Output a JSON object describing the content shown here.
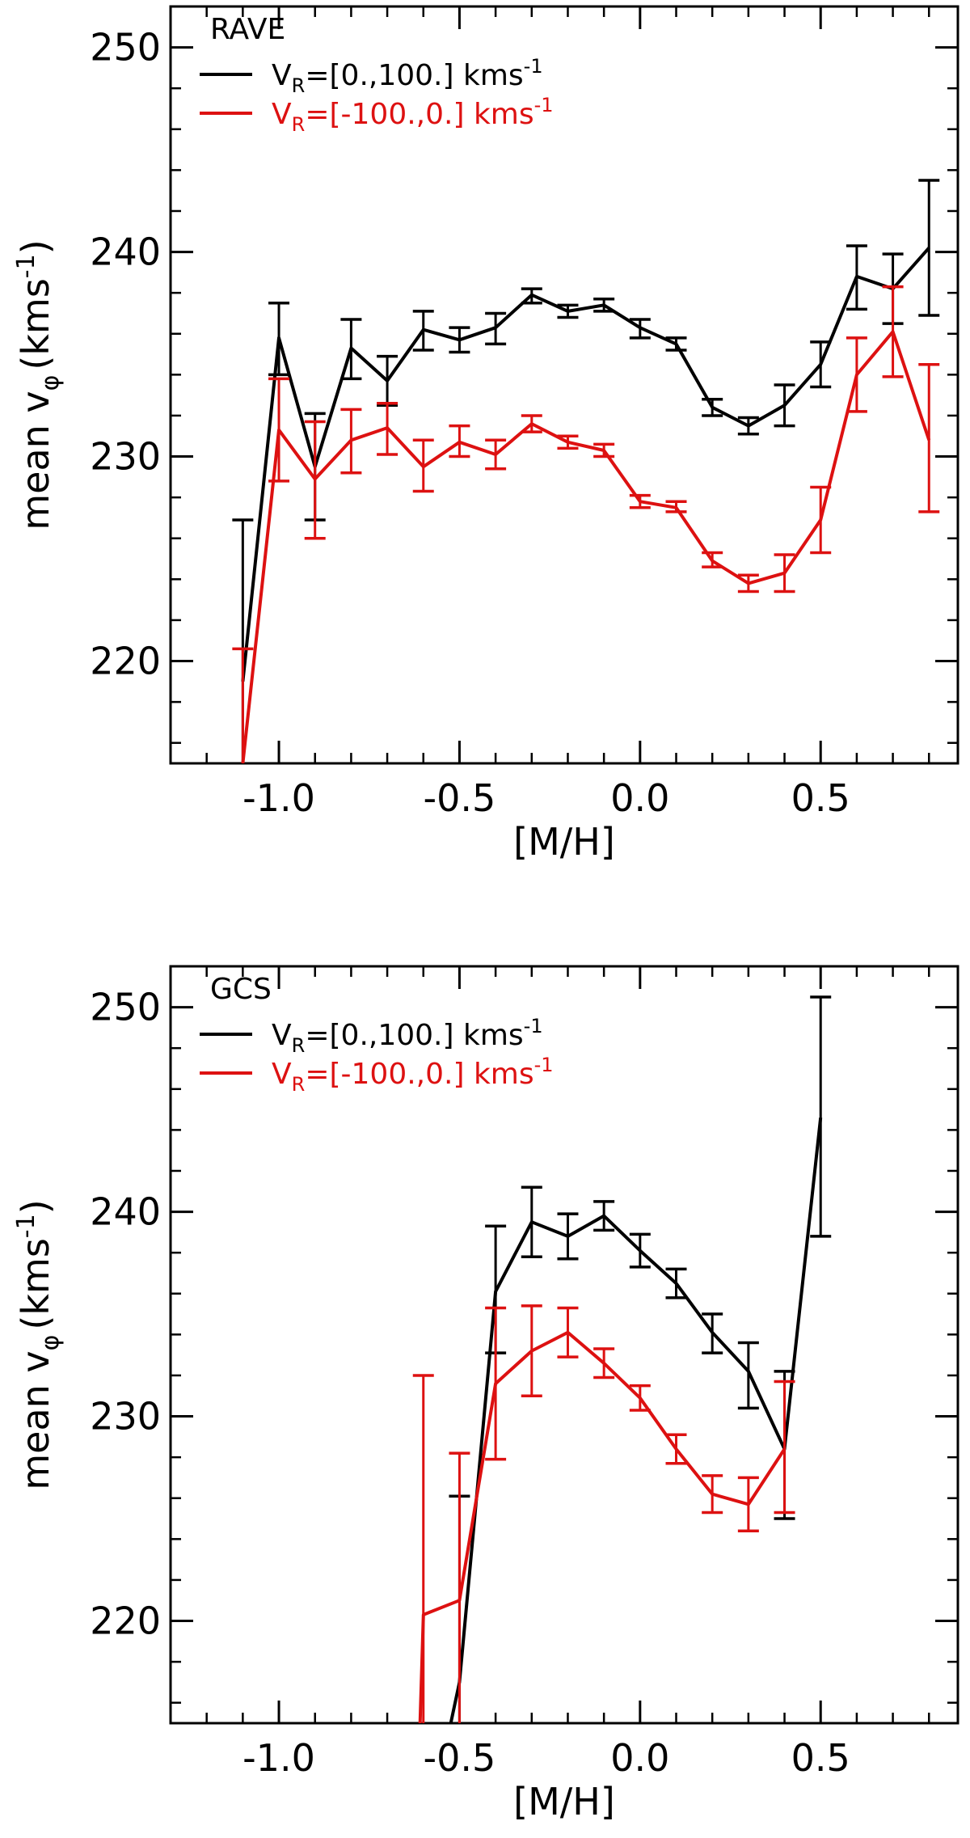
{
  "chart_data": [
    {
      "type": "line",
      "panel_label": "RAVE",
      "xlabel": "[M/H]",
      "ylabel_main": "mean v",
      "ylabel_sub": "φ",
      "ylabel_unit": "(kms",
      "ylabel_exp": "-1",
      "ylabel_close": ")",
      "xlim": [
        -1.3,
        0.88
      ],
      "ylim": [
        215,
        252
      ],
      "xticks": [
        -1.0,
        -0.5,
        0.0,
        0.5
      ],
      "xtick_labels": [
        "-1.0",
        "-0.5",
        "0.0",
        "0.5"
      ],
      "yticks": [
        220,
        230,
        240,
        250
      ],
      "ytick_labels": [
        "220",
        "230",
        "240",
        "250"
      ],
      "legend": {
        "position": "top-left",
        "entries": [
          {
            "color": "#000000",
            "prefix": "V",
            "sub": "R",
            "text": "=[0.,100.] kms",
            "sup": "-1"
          },
          {
            "color": "#dd1111",
            "prefix": "V",
            "sub": "R",
            "text": "=[-100.,0.] kms",
            "sup": "-1"
          }
        ]
      },
      "series": [
        {
          "name": "V_R=[0.,100.] kms^-1",
          "color": "#000000",
          "x": [
            -1.1,
            -1.0,
            -0.9,
            -0.8,
            -0.7,
            -0.6,
            -0.5,
            -0.4,
            -0.3,
            -0.2,
            -0.1,
            0.0,
            0.1,
            0.2,
            0.3,
            0.4,
            0.5,
            0.6,
            0.7,
            0.8
          ],
          "y": [
            219.0,
            235.8,
            229.5,
            235.3,
            233.7,
            236.2,
            235.7,
            236.3,
            237.9,
            237.1,
            237.4,
            236.3,
            235.5,
            232.4,
            231.5,
            232.5,
            234.5,
            238.8,
            238.2,
            240.2
          ],
          "err_lo": [
            214.5,
            234.0,
            226.9,
            233.8,
            232.5,
            235.2,
            235.1,
            235.5,
            237.5,
            236.8,
            237.1,
            235.8,
            235.2,
            232.0,
            231.1,
            231.5,
            233.4,
            237.2,
            236.5,
            236.9
          ],
          "err_hi": [
            226.9,
            237.5,
            232.1,
            236.7,
            234.9,
            237.1,
            236.3,
            237.0,
            238.2,
            237.4,
            237.7,
            236.7,
            235.8,
            232.8,
            231.9,
            233.5,
            235.6,
            240.3,
            239.9,
            243.5
          ]
        },
        {
          "name": "V_R=[-100.,0.] kms^-1",
          "color": "#dd1111",
          "x": [
            -1.1,
            -1.0,
            -0.9,
            -0.8,
            -0.7,
            -0.6,
            -0.5,
            -0.4,
            -0.3,
            -0.2,
            -0.1,
            0.0,
            0.1,
            0.2,
            0.3,
            0.4,
            0.5,
            0.6,
            0.7,
            0.8
          ],
          "y": [
            215.0,
            231.3,
            228.9,
            230.8,
            231.4,
            229.5,
            230.7,
            230.1,
            231.6,
            230.7,
            230.3,
            227.8,
            227.5,
            224.9,
            223.8,
            224.3,
            226.9,
            234.0,
            236.1,
            230.8
          ],
          "err_lo": [
            214.0,
            228.8,
            226.0,
            229.2,
            230.1,
            228.3,
            230.0,
            229.4,
            231.2,
            230.4,
            230.0,
            227.5,
            227.3,
            224.6,
            223.4,
            223.4,
            225.3,
            232.2,
            233.9,
            227.3
          ],
          "err_hi": [
            220.6,
            233.8,
            231.7,
            232.3,
            232.6,
            230.8,
            231.5,
            230.8,
            232.0,
            231.0,
            230.6,
            228.1,
            227.8,
            225.3,
            224.2,
            225.2,
            228.5,
            235.8,
            238.3,
            234.5
          ]
        }
      ]
    },
    {
      "type": "line",
      "panel_label": "GCS",
      "xlabel": "[M/H]",
      "ylabel_main": "mean v",
      "ylabel_sub": "φ",
      "ylabel_unit": "(kms",
      "ylabel_exp": "-1",
      "ylabel_close": ")",
      "xlim": [
        -1.3,
        0.88
      ],
      "ylim": [
        215,
        252
      ],
      "xticks": [
        -1.0,
        -0.5,
        0.0,
        0.5
      ],
      "xtick_labels": [
        "-1.0",
        "-0.5",
        "0.0",
        "0.5"
      ],
      "yticks": [
        220,
        230,
        240,
        250
      ],
      "ytick_labels": [
        "220",
        "230",
        "240",
        "250"
      ],
      "legend": {
        "position": "top-left",
        "entries": [
          {
            "color": "#000000",
            "prefix": "V",
            "sub": "R",
            "text": "=[0.,100.] kms",
            "sup": "-1"
          },
          {
            "color": "#dd1111",
            "prefix": "V",
            "sub": "R",
            "text": "=[-100.,0.] kms",
            "sup": "-1"
          }
        ]
      },
      "series": [
        {
          "name": "V_R=[0.,100.] kms^-1",
          "color": "#000000",
          "x": [
            -0.53,
            -0.5,
            -0.4,
            -0.3,
            -0.2,
            -0.1,
            0.0,
            0.1,
            0.2,
            0.3,
            0.4,
            0.5
          ],
          "y": [
            214.5,
            217.0,
            236.1,
            239.5,
            238.8,
            239.8,
            238.1,
            236.5,
            234.1,
            232.2,
            228.4,
            244.6
          ],
          "err_lo": [
            null,
            211.0,
            233.1,
            237.8,
            237.7,
            239.1,
            237.3,
            235.8,
            233.1,
            230.4,
            225.0,
            238.8
          ],
          "err_hi": [
            null,
            226.1,
            239.3,
            241.2,
            239.9,
            240.5,
            238.9,
            237.2,
            235.0,
            233.6,
            232.2,
            250.5
          ]
        },
        {
          "name": "V_R=[-100.,0.] kms^-1",
          "color": "#dd1111",
          "x": [
            -0.61,
            -0.6,
            -0.5,
            -0.4,
            -0.3,
            -0.2,
            -0.1,
            0.0,
            0.1,
            0.2,
            0.3,
            0.4
          ],
          "y": [
            214.5,
            220.3,
            221.0,
            231.6,
            233.2,
            234.1,
            232.6,
            230.9,
            228.4,
            226.2,
            225.7,
            228.4
          ],
          "err_lo": [
            null,
            208.6,
            213.8,
            227.9,
            231.0,
            232.9,
            231.9,
            230.3,
            227.7,
            225.3,
            224.4,
            225.3
          ],
          "err_hi": [
            null,
            232.0,
            228.2,
            235.3,
            235.4,
            235.3,
            233.3,
            231.5,
            229.1,
            227.1,
            227.0,
            231.7
          ]
        }
      ]
    }
  ]
}
